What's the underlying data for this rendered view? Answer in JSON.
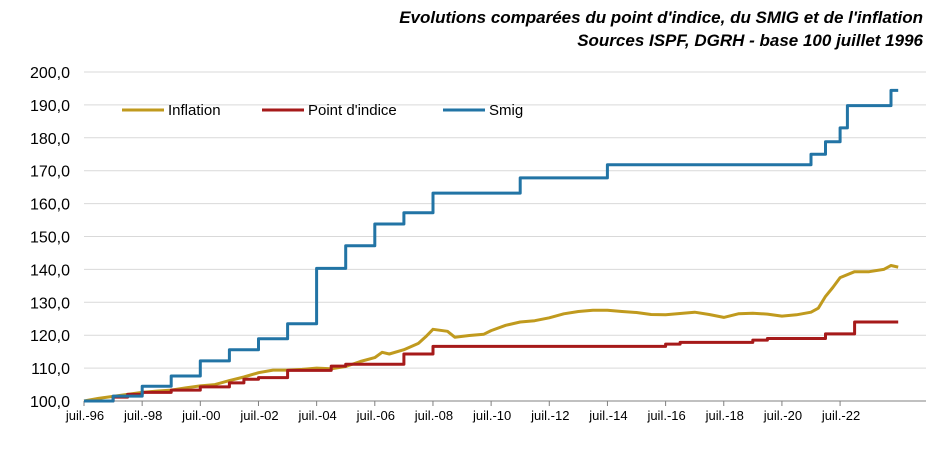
{
  "chart_data": {
    "type": "line",
    "title": "Evolutions comparées du point d'indice, du SMIG et de l'inflation",
    "subtitle": "Sources ISPF, DGRH - base 100 juillet 1996",
    "xlabel": "",
    "ylabel": "",
    "xlim": [
      "1996-07",
      "2023-12"
    ],
    "ylim": [
      100,
      200
    ],
    "y_ticks": [
      "100,0",
      "110,0",
      "120,0",
      "130,0",
      "140,0",
      "150,0",
      "160,0",
      "170,0",
      "180,0",
      "190,0",
      "200,0"
    ],
    "x_ticks": [
      "juil.-96",
      "juil.-98",
      "juil.-00",
      "juil.-02",
      "juil.-04",
      "juil.-06",
      "juil.-08",
      "juil.-10",
      "juil.-12",
      "juil.-14",
      "juil.-16",
      "juil.-18",
      "juil.-20",
      "juil.-22"
    ],
    "grid": "horizontal",
    "legend_position": "top-left",
    "series": [
      {
        "name": "Inflation",
        "color": "#C09A1E",
        "step": false,
        "points": [
          [
            "1996-07",
            100.0
          ],
          [
            "1997-01",
            100.8
          ],
          [
            "1997-07",
            101.4
          ],
          [
            "1998-01",
            102.0
          ],
          [
            "1998-07",
            102.6
          ],
          [
            "1999-01",
            103.0
          ],
          [
            "1999-07",
            103.3
          ],
          [
            "2000-01",
            104.0
          ],
          [
            "2000-07",
            104.6
          ],
          [
            "2001-01",
            105.0
          ],
          [
            "2001-07",
            106.2
          ],
          [
            "2002-01",
            107.3
          ],
          [
            "2002-07",
            108.6
          ],
          [
            "2003-01",
            109.4
          ],
          [
            "2003-07",
            109.4
          ],
          [
            "2004-01",
            109.6
          ],
          [
            "2004-07",
            110.0
          ],
          [
            "2005-01",
            109.8
          ],
          [
            "2005-07",
            110.5
          ],
          [
            "2006-01",
            112.0
          ],
          [
            "2006-07",
            113.2
          ],
          [
            "2006-10",
            114.8
          ],
          [
            "2007-01",
            114.3
          ],
          [
            "2007-07",
            115.6
          ],
          [
            "2008-01",
            117.5
          ],
          [
            "2008-04",
            119.5
          ],
          [
            "2008-07",
            121.8
          ],
          [
            "2009-01",
            121.2
          ],
          [
            "2009-04",
            119.4
          ],
          [
            "2009-10",
            119.9
          ],
          [
            "2010-04",
            120.3
          ],
          [
            "2010-07",
            121.4
          ],
          [
            "2011-01",
            123.0
          ],
          [
            "2011-07",
            124.0
          ],
          [
            "2012-01",
            124.4
          ],
          [
            "2012-07",
            125.3
          ],
          [
            "2013-01",
            126.5
          ],
          [
            "2013-07",
            127.2
          ],
          [
            "2014-01",
            127.6
          ],
          [
            "2014-07",
            127.6
          ],
          [
            "2015-01",
            127.2
          ],
          [
            "2015-07",
            126.9
          ],
          [
            "2016-01",
            126.3
          ],
          [
            "2016-07",
            126.2
          ],
          [
            "2017-01",
            126.6
          ],
          [
            "2017-07",
            127.0
          ],
          [
            "2018-01",
            126.3
          ],
          [
            "2018-07",
            125.4
          ],
          [
            "2019-01",
            126.5
          ],
          [
            "2019-07",
            126.7
          ],
          [
            "2020-01",
            126.4
          ],
          [
            "2020-07",
            125.8
          ],
          [
            "2021-01",
            126.2
          ],
          [
            "2021-07",
            127.0
          ],
          [
            "2021-10",
            128.2
          ],
          [
            "2022-01",
            131.8
          ],
          [
            "2022-04",
            134.5
          ],
          [
            "2022-07",
            137.5
          ],
          [
            "2023-01",
            139.3
          ],
          [
            "2023-07",
            139.3
          ],
          [
            "2024-01",
            140.0
          ],
          [
            "2024-04",
            141.2
          ],
          [
            "2024-07",
            140.7
          ]
        ]
      },
      {
        "name": "Point d'indice",
        "color": "#A61A1A",
        "step": true,
        "points": [
          [
            "1996-07",
            100.0
          ],
          [
            "1997-07",
            101.2
          ],
          [
            "1998-01",
            102.0
          ],
          [
            "1998-07",
            102.6
          ],
          [
            "1999-07",
            103.3
          ],
          [
            "2000-07",
            104.3
          ],
          [
            "2001-07",
            105.5
          ],
          [
            "2002-01",
            106.6
          ],
          [
            "2002-07",
            107.1
          ],
          [
            "2003-07",
            109.3
          ],
          [
            "2005-01",
            110.6
          ],
          [
            "2005-07",
            111.2
          ],
          [
            "2007-07",
            114.3
          ],
          [
            "2008-07",
            116.6
          ],
          [
            "2016-07",
            117.3
          ],
          [
            "2017-01",
            117.8
          ],
          [
            "2019-07",
            118.5
          ],
          [
            "2020-01",
            119.0
          ],
          [
            "2022-01",
            120.4
          ],
          [
            "2023-01",
            124.0
          ],
          [
            "2024-07",
            124.0
          ]
        ]
      },
      {
        "name": "Smig",
        "color": "#2274A5",
        "step": true,
        "points": [
          [
            "1996-07",
            100.0
          ],
          [
            "1997-07",
            101.5
          ],
          [
            "1998-07",
            104.5
          ],
          [
            "1999-07",
            107.6
          ],
          [
            "2000-07",
            112.2
          ],
          [
            "2001-07",
            115.6
          ],
          [
            "2002-07",
            118.9
          ],
          [
            "2003-07",
            123.5
          ],
          [
            "2004-07",
            140.3
          ],
          [
            "2005-07",
            147.2
          ],
          [
            "2006-07",
            153.8
          ],
          [
            "2007-07",
            157.2
          ],
          [
            "2008-07",
            163.2
          ],
          [
            "2011-07",
            167.8
          ],
          [
            "2014-07",
            171.8
          ],
          [
            "2021-07",
            175.0
          ],
          [
            "2022-01",
            178.8
          ],
          [
            "2022-07",
            183.0
          ],
          [
            "2022-10",
            189.8
          ],
          [
            "2024-04",
            194.4
          ],
          [
            "2024-07",
            194.4
          ]
        ]
      }
    ]
  }
}
